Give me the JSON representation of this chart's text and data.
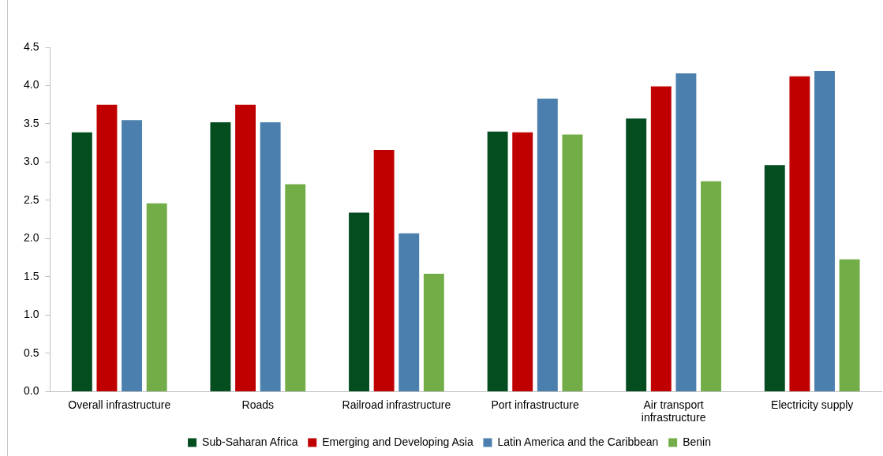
{
  "chart_data": {
    "type": "bar",
    "categories": [
      "Overall infrastructure",
      "Roads",
      "Railroad infrastructure",
      "Port infrastructure",
      "Air transport infrastructure",
      "Electricity supply"
    ],
    "series": [
      {
        "name": "Sub-Saharan Africa",
        "color": "#034d1f",
        "values": [
          3.39,
          3.52,
          2.34,
          3.4,
          3.57,
          2.96
        ]
      },
      {
        "name": "Emerging and Developing Asia",
        "color": "#c00000",
        "values": [
          3.75,
          3.75,
          3.16,
          3.39,
          3.99,
          4.12
        ]
      },
      {
        "name": "Latin America and the Caribbean",
        "color": "#4a7fae",
        "values": [
          3.55,
          3.52,
          2.07,
          3.83,
          4.16,
          4.19
        ]
      },
      {
        "name": "Benin",
        "color": "#72ad48",
        "values": [
          2.46,
          2.71,
          1.54,
          3.36,
          2.75,
          1.73
        ]
      }
    ],
    "ylim": [
      0,
      4.5
    ],
    "yticks": [
      {
        "value": 0,
        "label": "0.0"
      },
      0.5,
      {
        "value": 1,
        "label": "1.0"
      },
      1.5,
      {
        "value": 2,
        "label": "2.0"
      },
      2.5,
      {
        "value": 3,
        "label": "3.0"
      },
      3.5,
      {
        "value": 4,
        "label": "4.0"
      },
      4.5
    ],
    "grid": false,
    "legend": "bottom"
  }
}
